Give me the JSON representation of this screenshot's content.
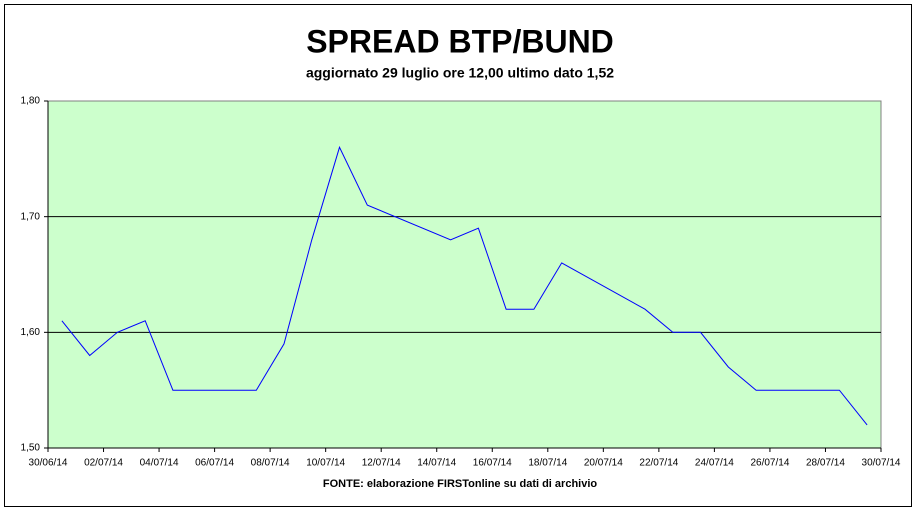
{
  "chart_data": {
    "type": "line",
    "title": "SPREAD BTP/BUND",
    "subtitle": "aggiornato 29 luglio ore 12,00 ultimo dato 1,52",
    "source": "FONTE: elaborazione FIRSTonline su dati di archivio",
    "x": [
      "30/06/14",
      "01/07/14",
      "02/07/14",
      "03/07/14",
      "04/07/14",
      "07/07/14",
      "08/07/14",
      "09/07/14",
      "10/07/14",
      "11/07/14",
      "14/07/14",
      "15/07/14",
      "16/07/14",
      "17/07/14",
      "18/07/14",
      "21/07/14",
      "22/07/14",
      "23/07/14",
      "24/07/14",
      "25/07/14",
      "28/07/14",
      "29/07/14"
    ],
    "values": [
      1.61,
      1.58,
      1.6,
      1.61,
      1.55,
      1.55,
      1.59,
      1.68,
      1.76,
      1.71,
      1.68,
      1.69,
      1.62,
      1.62,
      1.66,
      1.62,
      1.6,
      1.6,
      1.57,
      1.55,
      1.55,
      1.52
    ],
    "color": "#0000ff",
    "xlim": [
      "30/06/14",
      "30/07/14"
    ],
    "xticks": [
      "30/06/14",
      "02/07/14",
      "04/07/14",
      "06/07/14",
      "08/07/14",
      "10/07/14",
      "12/07/14",
      "14/07/14",
      "16/07/14",
      "18/07/14",
      "20/07/14",
      "22/07/14",
      "24/07/14",
      "26/07/14",
      "28/07/14",
      "30/07/14"
    ],
    "ylim": [
      1.5,
      1.8
    ],
    "yticks": [
      {
        "value": 1.5,
        "label": "1,50"
      },
      {
        "value": 1.6,
        "label": "1,60"
      },
      {
        "value": 1.7,
        "label": "1,70"
      },
      {
        "value": 1.8,
        "label": "1,80"
      }
    ],
    "grid": true,
    "background": "#ccffcc"
  }
}
